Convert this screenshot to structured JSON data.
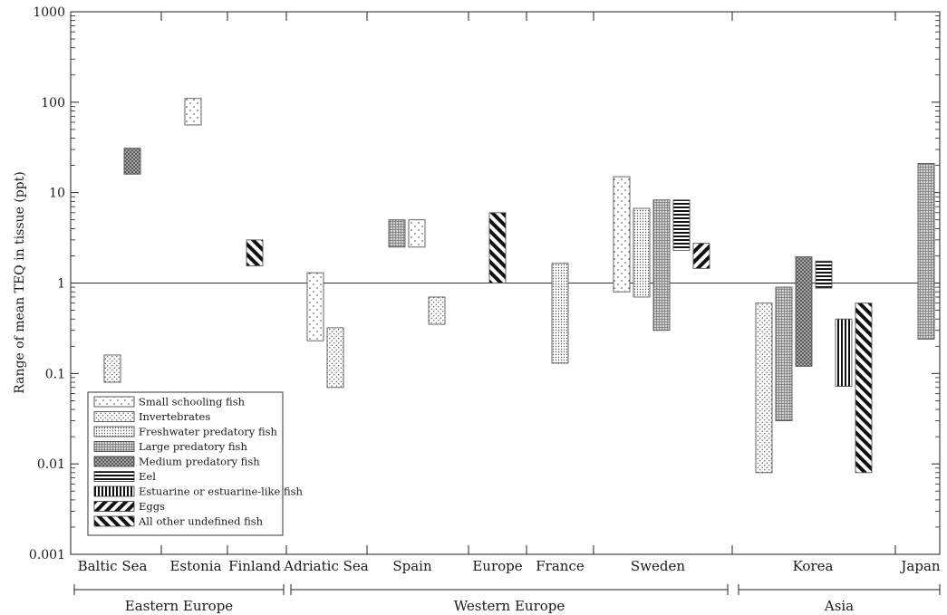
{
  "chart_data": {
    "type": "bar",
    "subtype": "floating-range",
    "ylabel": "Range of mean TEQ in tissue (ppt)",
    "yscale": "log",
    "ylim": [
      0.001,
      1000
    ],
    "yticks": [
      "0.001",
      "0.01",
      "0.1",
      "1",
      "10",
      "100",
      "1000"
    ],
    "reference_line": 1,
    "legend_position": "lower-left",
    "categories": [
      "Baltic Sea",
      "Estonia",
      "Finland",
      "Adriatic Sea",
      "Spain",
      "Europe",
      "France",
      "Sweden",
      "Korea",
      "Japan"
    ],
    "regions": [
      {
        "label": "Eastern Europe",
        "categories": [
          "Baltic Sea",
          "Estonia",
          "Finland"
        ]
      },
      {
        "label": "Western Europe",
        "categories": [
          "Adriatic Sea",
          "Spain",
          "Europe",
          "France",
          "Sweden"
        ]
      },
      {
        "label": "Asia",
        "categories": [
          "Korea",
          "Japan"
        ]
      }
    ],
    "series": [
      {
        "name": "Small schooling fish",
        "pattern": "sparse-dots"
      },
      {
        "name": "Invertebrates",
        "pattern": "dots"
      },
      {
        "name": "Freshwater predatory fish",
        "pattern": "dense-dots"
      },
      {
        "name": "Large predatory fish",
        "pattern": "fine-grid"
      },
      {
        "name": "Medium predatory fish",
        "pattern": "crosshatch"
      },
      {
        "name": "Eel",
        "pattern": "horizontal-lines"
      },
      {
        "name": "Estuarine or estuarine-like fish",
        "pattern": "vertical-lines"
      },
      {
        "name": "Eggs",
        "pattern": "diagonal-down"
      },
      {
        "name": "All other undefined fish",
        "pattern": "diagonal-up"
      }
    ],
    "ranges": [
      {
        "category": "Baltic Sea",
        "series": "Invertebrates",
        "slot": 0,
        "low": 0.08,
        "high": 0.16
      },
      {
        "category": "Baltic Sea",
        "series": "Medium predatory fish",
        "slot": 1,
        "low": 16,
        "high": 31
      },
      {
        "category": "Estonia",
        "series": "Small schooling fish",
        "slot": 0,
        "low": 56,
        "high": 110
      },
      {
        "category": "Finland",
        "series": "All other undefined fish",
        "slot": 0,
        "low": 1.55,
        "high": 3
      },
      {
        "category": "Adriatic Sea",
        "series": "Small schooling fish",
        "slot": 0,
        "low": 0.23,
        "high": 1.3
      },
      {
        "category": "Adriatic Sea",
        "series": "Invertebrates",
        "slot": 1,
        "low": 0.07,
        "high": 0.32
      },
      {
        "category": "Spain",
        "series": "Large predatory fish",
        "slot": 0,
        "low": 2.5,
        "high": 5
      },
      {
        "category": "Spain",
        "series": "Small schooling fish",
        "slot": 1,
        "low": 2.5,
        "high": 5
      },
      {
        "category": "Spain",
        "series": "Invertebrates",
        "slot": 2,
        "low": 0.35,
        "high": 0.7
      },
      {
        "category": "Europe",
        "series": "All other undefined fish",
        "slot": 0,
        "low": 1,
        "high": 6
      },
      {
        "category": "France",
        "series": "Freshwater predatory fish",
        "slot": 0,
        "low": 0.13,
        "high": 1.65
      },
      {
        "category": "Sweden",
        "series": "Small schooling fish",
        "slot": 0,
        "low": 0.8,
        "high": 15
      },
      {
        "category": "Sweden",
        "series": "Freshwater predatory fish",
        "slot": 1,
        "low": 0.7,
        "high": 6.7
      },
      {
        "category": "Sweden",
        "series": "Large predatory fish",
        "slot": 2,
        "low": 0.3,
        "high": 8.3
      },
      {
        "category": "Sweden",
        "series": "Eel",
        "slot": 3,
        "low": 2.3,
        "high": 8.3
      },
      {
        "category": "Sweden",
        "series": "Eggs",
        "slot": 4,
        "low": 1.45,
        "high": 2.75
      },
      {
        "category": "Korea",
        "series": "Invertebrates",
        "slot": 0,
        "low": 0.008,
        "high": 0.6
      },
      {
        "category": "Korea",
        "series": "Large predatory fish",
        "slot": 1,
        "low": 0.03,
        "high": 0.9
      },
      {
        "category": "Korea",
        "series": "Medium predatory fish",
        "slot": 2,
        "low": 0.12,
        "high": 1.95
      },
      {
        "category": "Korea",
        "series": "Eel",
        "slot": 3,
        "low": 0.88,
        "high": 1.75
      },
      {
        "category": "Korea",
        "series": "Estuarine or estuarine-like fish",
        "slot": 4,
        "low": 0.072,
        "high": 0.4
      },
      {
        "category": "Korea",
        "series": "All other undefined fish",
        "slot": 5,
        "low": 0.008,
        "high": 0.6
      },
      {
        "category": "Japan",
        "series": "Large predatory fish",
        "slot": 0,
        "low": 0.24,
        "high": 21
      }
    ]
  }
}
